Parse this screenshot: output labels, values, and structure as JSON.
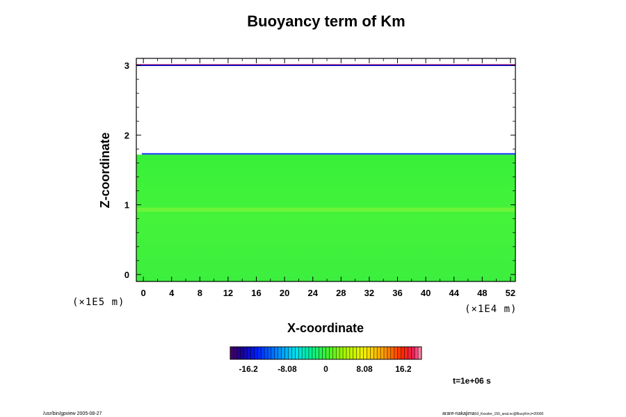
{
  "chart_data": {
    "type": "heatmap",
    "title": "Buoyancy term of Km",
    "xlabel": "X-coordinate",
    "ylabel": "Z-coordinate",
    "x_unit": "(×1E4 m)",
    "y_unit": "(×1E5 m)",
    "xlim": [
      -1,
      52.7
    ],
    "ylim": [
      -0.1,
      3.1
    ],
    "x_ticks": [
      "0",
      "4",
      "8",
      "12",
      "16",
      "20",
      "24",
      "28",
      "32",
      "36",
      "40",
      "44",
      "48",
      "52"
    ],
    "y_ticks": [
      "0",
      "1",
      "2",
      "3"
    ],
    "data_top_z": 1.72,
    "background_value": 0,
    "colorbar": {
      "min": -20,
      "max": 20,
      "tick_labels": [
        "-16.2",
        "-8.08",
        "0",
        "8.08",
        "16.2"
      ],
      "tick_values": [
        -16.2,
        -8.08,
        0,
        8.08,
        16.2
      ]
    },
    "time_label": "t=1e+06 s",
    "footer_left": "/usr/bin/gpview 2005-08-27",
    "footer_right": "arare-nakajima",
    "footer_right_small": "03_Kessler_150_anal.nc@BuoyKm,t=20000"
  }
}
